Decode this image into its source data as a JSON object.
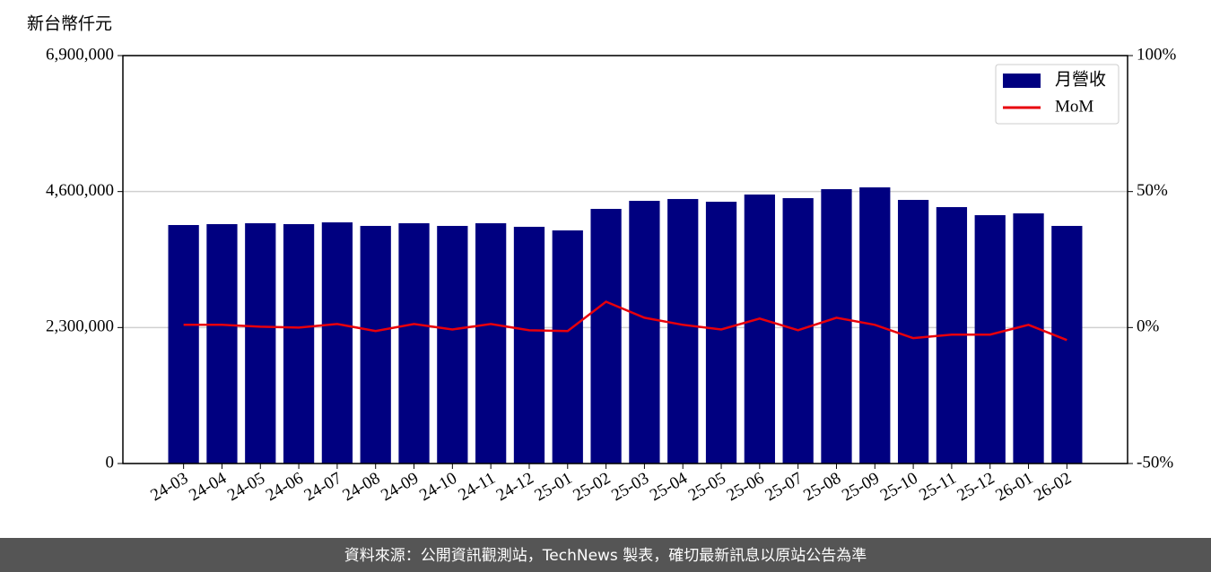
{
  "chart_data": {
    "type": "bar-line",
    "ylabel": "新台幣仟元",
    "categories": [
      "24-03",
      "24-04",
      "24-05",
      "24-06",
      "24-07",
      "24-08",
      "24-09",
      "24-10",
      "24-11",
      "24-12",
      "25-01",
      "25-02",
      "25-03",
      "25-04",
      "25-05",
      "25-06",
      "25-07",
      "25-08",
      "25-09",
      "25-10",
      "25-11",
      "25-12",
      "26-01",
      "26-02"
    ],
    "series": [
      {
        "name": "月營收",
        "type": "bar",
        "color": "#000080",
        "values": [
          4034000,
          4049000,
          4064000,
          4049000,
          4079000,
          4019000,
          4064000,
          4019000,
          4064000,
          4004000,
          3943000,
          4307000,
          4443000,
          4474000,
          4428000,
          4550000,
          4489000,
          4641000,
          4671000,
          4459000,
          4337000,
          4201000,
          4231000,
          4019000
        ]
      },
      {
        "name": "MoM",
        "type": "line",
        "axis": "y2",
        "color": "#e8000b",
        "values": [
          1.0,
          1.0,
          0.3,
          0,
          1.3,
          -1.3,
          1.3,
          -0.7,
          1.3,
          -1.0,
          -1.3,
          9.5,
          3.6,
          1.0,
          -0.7,
          3.3,
          -1.0,
          3.6,
          1.0,
          -3.9,
          -2.6,
          -2.6,
          1.0,
          -4.6
        ]
      }
    ],
    "ylim": [
      0,
      6900000
    ],
    "yticks": [
      0,
      {
        "value": 2300000,
        "label": "2,300,000"
      },
      {
        "value": 4600000,
        "label": "4,600,000"
      },
      {
        "value": 6900000,
        "label": "6,900,000"
      }
    ],
    "y2lim": [
      -50,
      100
    ],
    "y2ticks": [
      {
        "value": -50,
        "label": "-50%"
      },
      {
        "value": 0,
        "label": "0%"
      },
      {
        "value": 50,
        "label": "50%"
      },
      {
        "value": 100,
        "label": "100%"
      }
    ],
    "grid": true,
    "legend": "upper right"
  },
  "footer": "資料來源：公開資訊觀測站，TechNews 製表，確切最新訊息以原站公告為準"
}
